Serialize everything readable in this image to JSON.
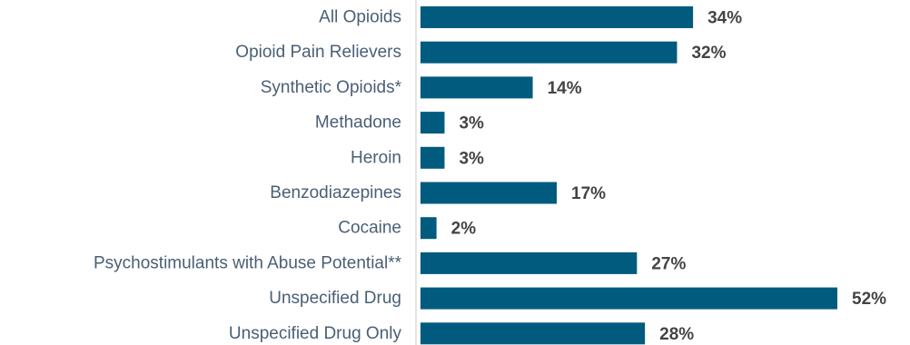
{
  "chart_data": {
    "type": "bar",
    "orientation": "horizontal",
    "categories": [
      "All Opioids",
      "Opioid Pain Relievers",
      "Synthetic Opioids*",
      "Methadone",
      "Heroin",
      "Benzodiazepines",
      "Cocaine",
      "Psychostimulants with Abuse Potential**",
      "Unspecified Drug",
      "Unspecified Drug Only"
    ],
    "values": [
      34,
      32,
      14,
      3,
      3,
      17,
      2,
      27,
      52,
      28
    ],
    "value_labels": [
      "34%",
      "32%",
      "14%",
      "3%",
      "3%",
      "17%",
      "2%",
      "27%",
      "52%",
      "28%"
    ],
    "xlim": [
      0,
      52
    ],
    "grid": false,
    "legend": "none",
    "bar_color": "#005b7f"
  }
}
